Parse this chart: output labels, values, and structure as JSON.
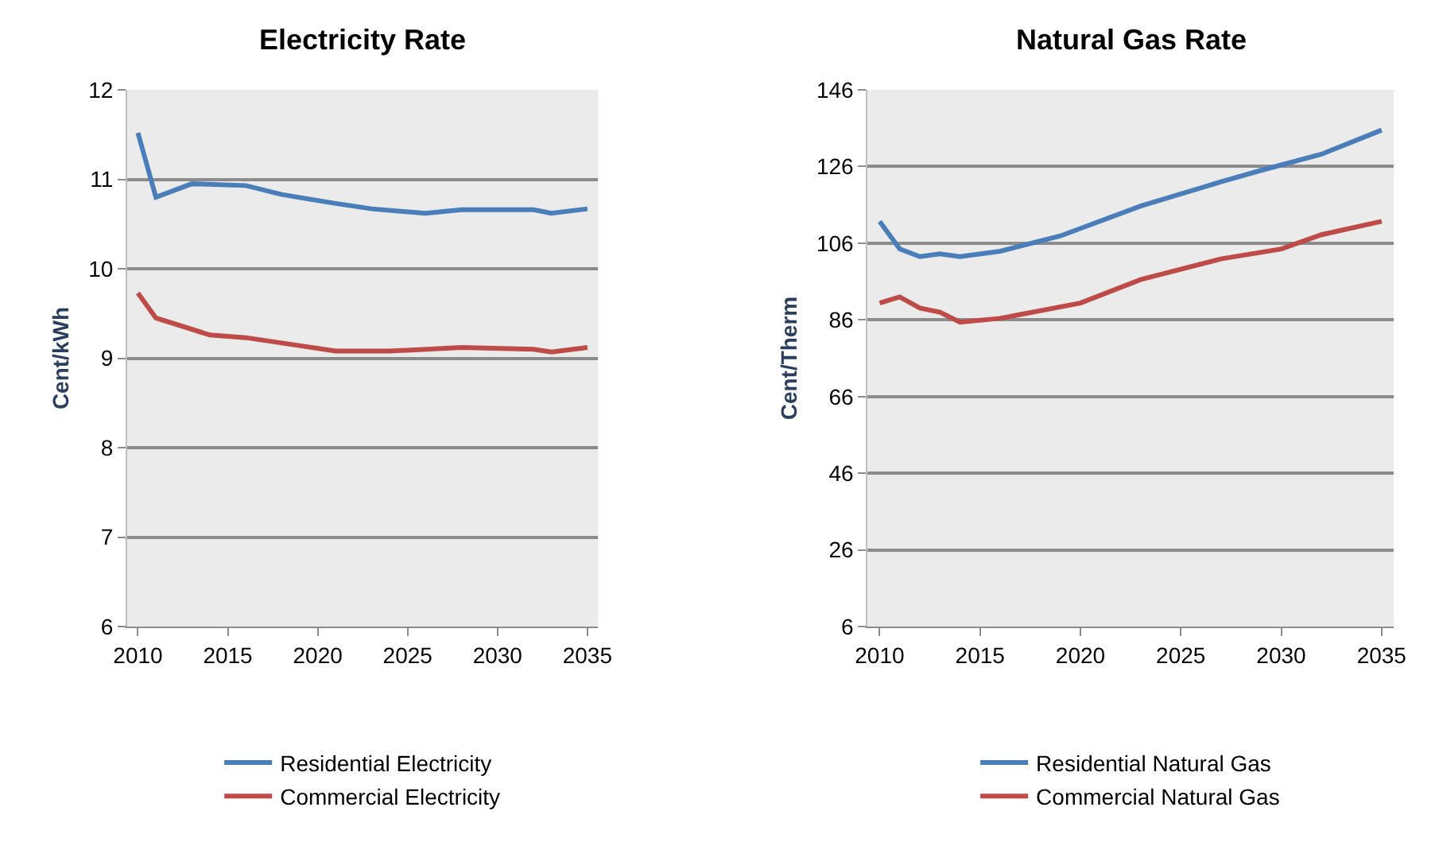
{
  "chart_data": [
    {
      "type": "line",
      "title": "Electricity Rate",
      "ylabel": "Cent/kWh",
      "xlim": [
        2009.4,
        2035.6
      ],
      "xticks": [
        2010,
        2015,
        2020,
        2025,
        2030,
        2035
      ],
      "ylim": [
        6,
        12
      ],
      "yticks": [
        6,
        7,
        8,
        9,
        10,
        11,
        12
      ],
      "grid": "y",
      "legend": "bottom",
      "marker": "none",
      "line_style": "solid",
      "series": [
        {
          "name": "Residential Electricity",
          "color": "#4a7ebb",
          "x": [
            2010,
            2011,
            2013,
            2016,
            2018,
            2021,
            2023,
            2026,
            2028,
            2032,
            2033,
            2035
          ],
          "values": [
            11.52,
            10.8,
            10.95,
            10.93,
            10.83,
            10.73,
            10.67,
            10.62,
            10.66,
            10.66,
            10.62,
            10.67
          ]
        },
        {
          "name": "Commercial Electricity",
          "color": "#be4b48",
          "x": [
            2010,
            2011,
            2014,
            2016,
            2018,
            2021,
            2024,
            2028,
            2032,
            2033,
            2035
          ],
          "values": [
            9.73,
            9.45,
            9.26,
            9.23,
            9.17,
            9.08,
            9.08,
            9.12,
            9.1,
            9.07,
            9.12
          ]
        }
      ]
    },
    {
      "type": "line",
      "title": "Natural Gas Rate",
      "ylabel": "Cent/Therm",
      "xlim": [
        2009.4,
        2035.6
      ],
      "xticks": [
        2010,
        2015,
        2020,
        2025,
        2030,
        2035
      ],
      "ylim": [
        6,
        146
      ],
      "yticks": [
        6,
        26,
        46,
        66,
        86,
        106,
        126,
        146
      ],
      "grid": "y",
      "legend": "bottom",
      "marker": "none",
      "line_style": "solid",
      "series": [
        {
          "name": "Residential Natural Gas",
          "color": "#4a7ebb",
          "x": [
            2010,
            2011,
            2012,
            2013,
            2014,
            2016,
            2019,
            2023,
            2027,
            2029,
            2032,
            2035
          ],
          "values": [
            111.7,
            104.5,
            102.5,
            103.2,
            102.5,
            103.9,
            107.9,
            115.7,
            122.0,
            125.0,
            129.2,
            135.5
          ]
        },
        {
          "name": "Commercial Natural Gas",
          "color": "#be4b48",
          "x": [
            2010,
            2011,
            2012,
            2013,
            2014,
            2016,
            2020,
            2023,
            2027,
            2030,
            2032,
            2035
          ],
          "values": [
            90.4,
            92.0,
            89.1,
            88.0,
            85.4,
            86.4,
            90.4,
            96.5,
            101.9,
            104.5,
            108.2,
            111.7
          ]
        }
      ]
    }
  ]
}
